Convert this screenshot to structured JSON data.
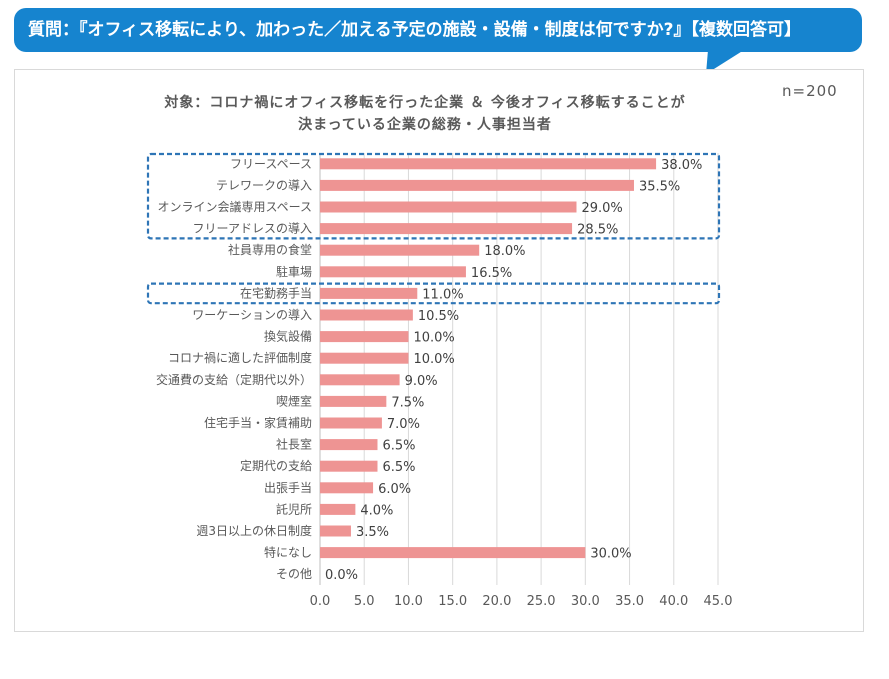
{
  "header": {
    "question": "質問：『オフィス移転により、加わった／加える予定の施設・設備・制度は何ですか?』【複数回答可】"
  },
  "sample": "n=200",
  "chart_data": {
    "type": "bar",
    "orientation": "horizontal",
    "title_lines": [
      "対象：コロナ禍にオフィス移転を行った企業 ＆ 今後オフィス移転することが",
      "決まっている企業の総務・人事担当者"
    ],
    "categories": [
      "フリースペース",
      "テレワークの導入",
      "オンライン会議専用スペース",
      "フリーアドレスの導入",
      "社員専用の食堂",
      "駐車場",
      "在宅勤務手当",
      "ワーケーションの導入",
      "換気設備",
      "コロナ禍に適した評価制度",
      "交通費の支給（定期代以外）",
      "喫煙室",
      "住宅手当・家賃補助",
      "社長室",
      "定期代の支給",
      "出張手当",
      "託児所",
      "週3日以上の休日制度",
      "特になし",
      "その他"
    ],
    "values": [
      38.0,
      35.5,
      29.0,
      28.5,
      18.0,
      16.5,
      11.0,
      10.5,
      10.0,
      10.0,
      9.0,
      7.5,
      7.0,
      6.5,
      6.5,
      6.0,
      4.0,
      3.5,
      30.0,
      0.0
    ],
    "value_labels": [
      "38.0%",
      "35.5%",
      "29.0%",
      "28.5%",
      "18.0%",
      "16.5%",
      "11.0%",
      "10.5%",
      "10.0%",
      "10.0%",
      "9.0%",
      "7.5%",
      "7.0%",
      "6.5%",
      "6.5%",
      "6.0%",
      "4.0%",
      "3.5%",
      "30.0%",
      "0.0%"
    ],
    "xlim": [
      0,
      45
    ],
    "xticks": [
      "0.0",
      "5.0",
      "10.0",
      "15.0",
      "20.0",
      "25.0",
      "30.0",
      "35.0",
      "40.0",
      "45.0"
    ],
    "grid": true,
    "highlight_groups": [
      [
        0,
        3
      ],
      [
        6,
        6
      ]
    ],
    "colors": {
      "bar": "#ee9493",
      "highlight": "#2e75b6",
      "header": "#1684cf",
      "grid": "#d9d9d9"
    }
  }
}
